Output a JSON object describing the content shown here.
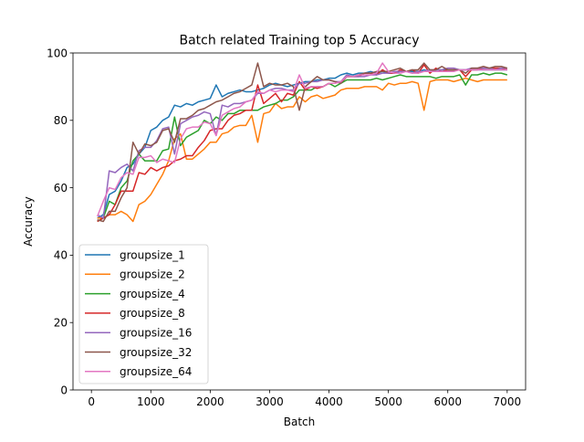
{
  "chart_data": {
    "type": "line",
    "title": "Batch related Training top 5 Accuracy",
    "xlabel": "Batch",
    "ylabel": "Accuracy",
    "xlim": [
      -310,
      7310
    ],
    "ylim": [
      0,
      100
    ],
    "xticks": [
      0,
      1000,
      2000,
      3000,
      4000,
      5000,
      6000,
      7000
    ],
    "yticks": [
      0,
      20,
      40,
      60,
      80,
      100
    ],
    "grid": false,
    "legend_position": "lower-left",
    "x": [
      100,
      200,
      300,
      400,
      500,
      600,
      700,
      800,
      900,
      1000,
      1100,
      1200,
      1300,
      1400,
      1500,
      1600,
      1700,
      1800,
      1900,
      2000,
      2100,
      2200,
      2300,
      2400,
      2500,
      2600,
      2700,
      2800,
      2900,
      3000,
      3100,
      3200,
      3300,
      3400,
      3500,
      3600,
      3700,
      3800,
      3900,
      4000,
      4100,
      4200,
      4300,
      4400,
      4500,
      4600,
      4700,
      4800,
      4900,
      5000,
      5100,
      5200,
      5300,
      5400,
      5500,
      5600,
      5700,
      5800,
      5900,
      6000,
      6100,
      6200,
      6300,
      6400,
      6500,
      6600,
      6700,
      6800,
      6900,
      7000
    ],
    "series": [
      {
        "name": "groupsize_1",
        "color": "#1f77b4",
        "values": [
          51,
          52,
          58,
          59,
          62,
          66,
          67,
          70,
          72,
          77,
          78,
          80,
          81,
          84.5,
          84,
          85,
          84.5,
          85.5,
          86,
          86.5,
          90.5,
          87,
          88,
          88.5,
          89,
          88.5,
          88.5,
          89,
          89.5,
          90.5,
          91,
          90.5,
          90,
          90.5,
          91,
          91.5,
          91.5,
          92,
          92,
          92.5,
          92.5,
          93.5,
          94,
          93.5,
          94,
          94,
          94.5,
          94,
          94.5,
          94,
          94,
          94.5,
          94.5,
          94.5,
          94.5,
          95,
          94.5,
          95,
          95,
          95,
          95,
          95,
          95,
          95,
          95,
          95,
          95,
          95,
          95,
          95
        ]
      },
      {
        "name": "groupsize_2",
        "color": "#ff7f0e",
        "values": [
          51,
          51,
          52,
          52,
          53,
          52,
          50,
          55,
          56,
          58,
          61,
          64,
          68,
          74.5,
          76,
          68.5,
          68.5,
          70,
          71.5,
          73.5,
          73.5,
          76,
          76.5,
          78,
          78.5,
          78.5,
          81.5,
          73.5,
          82,
          82.5,
          85,
          83.5,
          84,
          84,
          87,
          85.5,
          87,
          87.5,
          86.5,
          87,
          87.5,
          89,
          89.5,
          89.5,
          89.5,
          90,
          90,
          90,
          89,
          91,
          90.5,
          91,
          91,
          91.5,
          91,
          83,
          91.5,
          92,
          92,
          92,
          91.5,
          92,
          92.5,
          92,
          91.5,
          92,
          92,
          92,
          92,
          92
        ]
      },
      {
        "name": "groupsize_4",
        "color": "#2ca02c",
        "values": [
          50,
          51,
          56,
          55,
          60,
          62,
          68,
          70,
          68,
          68,
          68,
          71,
          71.5,
          81,
          72.5,
          75,
          76,
          77,
          80,
          79,
          81,
          80,
          82,
          82,
          83,
          83,
          83,
          83,
          84,
          84.5,
          85,
          86,
          86,
          87,
          89,
          89,
          89,
          90,
          90,
          91,
          90,
          91,
          92,
          92,
          92,
          92,
          92,
          92.5,
          92,
          92.5,
          93,
          93.5,
          93,
          93,
          93,
          93,
          93,
          92.5,
          93,
          93,
          93,
          93.5,
          90.5,
          93.5,
          93.5,
          94,
          93.5,
          94,
          94,
          93.5
        ]
      },
      {
        "name": "groupsize_8",
        "color": "#d62728",
        "values": [
          50,
          51,
          52,
          55,
          59,
          59,
          59,
          64.5,
          64,
          66,
          65,
          66,
          66.5,
          68,
          68.5,
          69.5,
          69.5,
          72,
          74,
          77,
          77.5,
          77.5,
          80,
          81.5,
          82,
          83,
          83,
          90.5,
          85,
          86.5,
          88,
          85.5,
          88,
          87.5,
          91.5,
          89,
          90,
          89.5,
          90,
          91,
          91,
          91.5,
          93,
          93,
          93,
          94,
          94,
          93.5,
          95,
          94,
          94,
          95,
          94.5,
          95,
          94,
          96.5,
          94,
          95.5,
          94.5,
          95,
          95,
          95,
          93,
          95,
          95,
          95.5,
          95.5,
          95.5,
          95.5,
          95
        ]
      },
      {
        "name": "groupsize_16",
        "color": "#9467bd",
        "values": [
          52,
          51,
          65,
          64.5,
          66,
          67,
          65,
          71,
          72,
          72,
          74,
          77.5,
          78,
          70,
          79,
          80,
          81,
          81.5,
          82.5,
          82,
          75.5,
          84.5,
          84,
          85,
          85,
          85.5,
          86,
          88,
          88,
          89,
          89.5,
          89.5,
          89,
          89,
          91,
          91,
          91.5,
          91.5,
          92,
          92,
          91.5,
          91.5,
          93.5,
          93,
          93,
          93,
          93.5,
          93.5,
          94,
          94,
          94.5,
          94.5,
          94.5,
          94,
          94.5,
          94.5,
          95,
          95,
          95,
          95.5,
          95.5,
          95,
          95,
          95.5,
          95.5,
          95.5,
          95.5,
          95,
          95.5,
          95.5
        ]
      },
      {
        "name": "groupsize_32",
        "color": "#8c564b",
        "values": [
          50.5,
          50,
          53,
          53,
          57,
          60,
          73.5,
          70,
          73,
          72.5,
          73.5,
          77,
          77.5,
          73.5,
          80.5,
          80.5,
          81.5,
          83,
          83.5,
          84.5,
          85.5,
          86,
          87,
          88,
          88.5,
          89.5,
          90.5,
          97,
          90,
          91,
          90.5,
          90.5,
          91,
          90,
          83,
          90,
          91.5,
          93,
          92,
          92,
          91.5,
          91,
          93,
          93,
          93.5,
          94,
          94,
          94.5,
          94.5,
          94.5,
          95,
          95.5,
          94.5,
          95,
          95,
          97,
          95,
          95,
          96,
          95,
          95,
          95,
          94,
          95.5,
          95.5,
          96,
          95.5,
          96,
          96,
          95.5
        ]
      },
      {
        "name": "groupsize_64",
        "color": "#e377c2",
        "values": [
          51.5,
          56,
          60,
          59.5,
          63,
          64.5,
          64,
          69,
          69,
          69.5,
          67.5,
          68.5,
          68,
          67.5,
          74.5,
          77.5,
          78,
          78,
          79.5,
          79,
          75.5,
          81.5,
          82.5,
          83.5,
          84,
          85.5,
          86,
          88.5,
          88,
          89,
          88.5,
          89,
          89,
          88.5,
          93.5,
          89.5,
          90,
          90,
          90,
          91,
          91,
          91.5,
          93,
          93,
          93.5,
          93.5,
          93.5,
          94,
          97,
          94.5,
          94,
          94,
          94.5,
          94,
          94,
          94.5,
          94.5,
          94.5,
          94.5,
          94.5,
          94.5,
          95,
          95,
          95,
          95,
          95,
          95,
          95,
          95,
          95
        ]
      }
    ]
  }
}
